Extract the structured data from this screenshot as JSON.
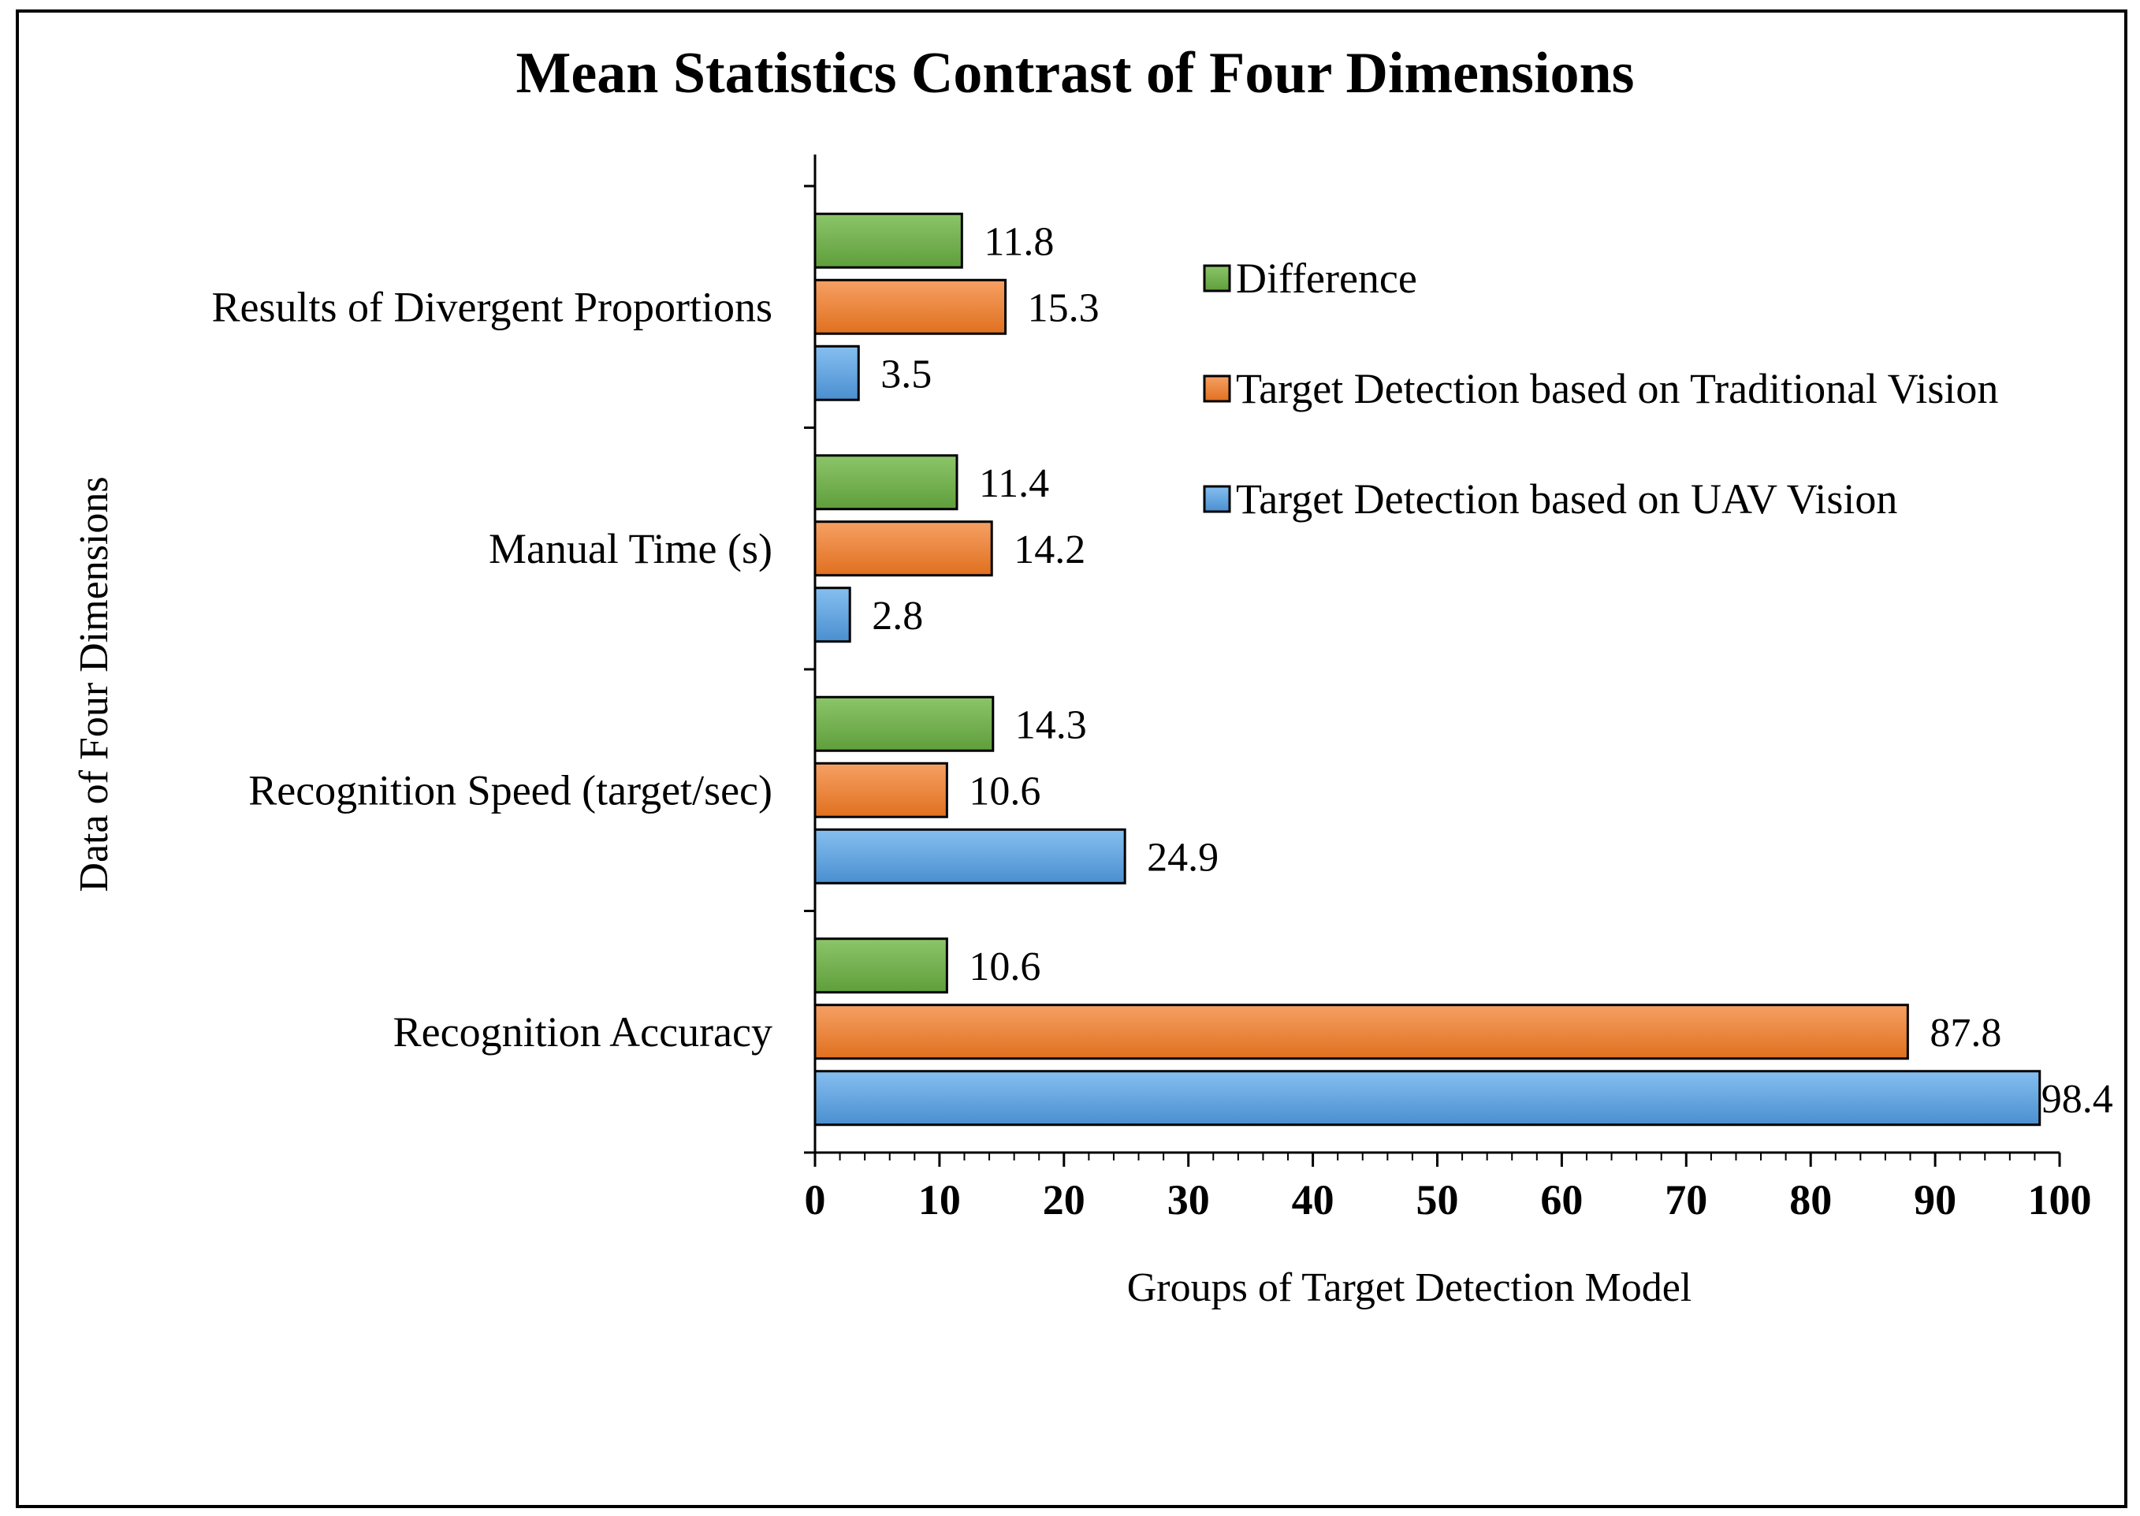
{
  "chart_data": {
    "type": "bar",
    "orientation": "horizontal",
    "title": "Mean Statistics Contrast of Four Dimensions",
    "xlabel": "Groups  of Target  Detection  Model",
    "ylabel": "Data of  Four Dimensions",
    "categories": [
      "Results of Divergent Proportions",
      "Manual Time (s)",
      "Recognition Speed (target/sec)",
      "Recognition Accuracy"
    ],
    "series": [
      {
        "name": "Difference",
        "color": "#70ad47",
        "values": [
          11.8,
          11.4,
          14.3,
          10.6
        ]
      },
      {
        "name": "Target Detection based on Traditional Vision",
        "color": "#ed7d31",
        "values": [
          15.3,
          14.2,
          10.6,
          87.8
        ]
      },
      {
        "name": "Target Detection based on UAV Vision",
        "color": "#5b9bd5",
        "values": [
          3.5,
          2.8,
          24.9,
          98.4
        ]
      }
    ],
    "data_labels": [
      [
        "11.8",
        "11.4",
        "14.3",
        "10.6"
      ],
      [
        "15.3",
        "14.2",
        "10.6",
        "87.8"
      ],
      [
        "3.5",
        "2.8",
        "24.9",
        "98.4"
      ]
    ],
    "xlim": [
      0,
      100
    ],
    "x_ticks": [
      0,
      10,
      20,
      30,
      40,
      50,
      60,
      70,
      80,
      90,
      100
    ],
    "x_tick_labels": [
      "0",
      "10",
      "20",
      "30",
      "40",
      "50",
      "60",
      "70",
      "80",
      "90",
      "100"
    ],
    "minor_ticks_per_major": 5,
    "grid": false,
    "legend_position": "right"
  }
}
